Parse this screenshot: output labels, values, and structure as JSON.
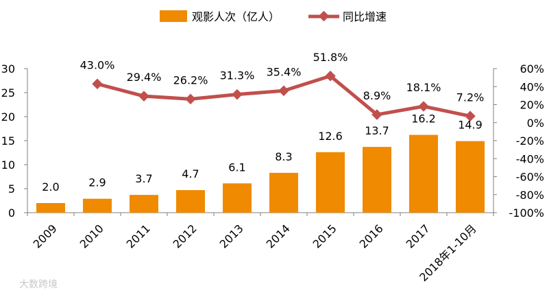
{
  "chart_data": {
    "type": "bar+line",
    "categories": [
      "2009",
      "2010",
      "2011",
      "2012",
      "2013",
      "2014",
      "2015",
      "2016",
      "2017",
      "2018年1-10月"
    ],
    "series": [
      {
        "name": "观影人次（亿人）",
        "type": "bar",
        "axis": "left",
        "values": [
          2.0,
          2.9,
          3.7,
          4.7,
          6.1,
          8.3,
          12.6,
          13.7,
          16.2,
          14.9
        ],
        "labels": [
          "2.0",
          "2.9",
          "3.7",
          "4.7",
          "6.1",
          "8.3",
          "12.6",
          "13.7",
          "16.2",
          "14.9"
        ],
        "color": "#f08a00"
      },
      {
        "name": "同比增速",
        "type": "line",
        "axis": "right",
        "values": [
          null,
          43.0,
          29.4,
          26.2,
          31.3,
          35.4,
          51.8,
          8.9,
          18.1,
          7.2
        ],
        "labels": [
          "",
          "43.0%",
          "29.4%",
          "26.2%",
          "31.3%",
          "35.4%",
          "51.8%",
          "8.9%",
          "18.1%",
          "7.2%"
        ],
        "color": "#c0504d"
      }
    ],
    "y_left": {
      "min": 0,
      "max": 30,
      "step": 5,
      "ticks": [
        "0",
        "5",
        "10",
        "15",
        "20",
        "25",
        "30"
      ]
    },
    "y_right": {
      "min": -100,
      "max": 60,
      "step": 20,
      "ticks": [
        "-100%",
        "-80%",
        "-60%",
        "-40%",
        "-20%",
        "0%",
        "20%",
        "40%",
        "60%"
      ]
    },
    "legend_position": "top-center",
    "grid": false
  },
  "watermark": "大数跨境"
}
